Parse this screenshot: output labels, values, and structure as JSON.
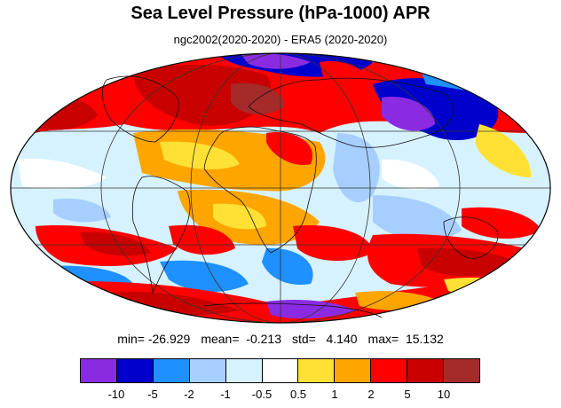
{
  "title": "Sea Level Pressure (hPa-1000) APR",
  "subtitle": "ngc2002(2020-2020) - ERA5 (2020-2020)",
  "stats": {
    "min": "min= -26.929",
    "mean": "mean=  -0.213",
    "std": "std=   4.140",
    "max": "max=  15.132"
  },
  "colorbar": {
    "colors": [
      "#8a2be2",
      "#0000cd",
      "#1e90ff",
      "#a6cfff",
      "#d6f2ff",
      "#ffffff",
      "#ffe135",
      "#ffa500",
      "#ff0000",
      "#c80000",
      "#a52a2a"
    ],
    "labels": [
      "-10",
      "-5",
      "-2",
      "-1",
      "-0.5",
      "0.5",
      "1",
      "2",
      "5",
      "10"
    ]
  }
}
